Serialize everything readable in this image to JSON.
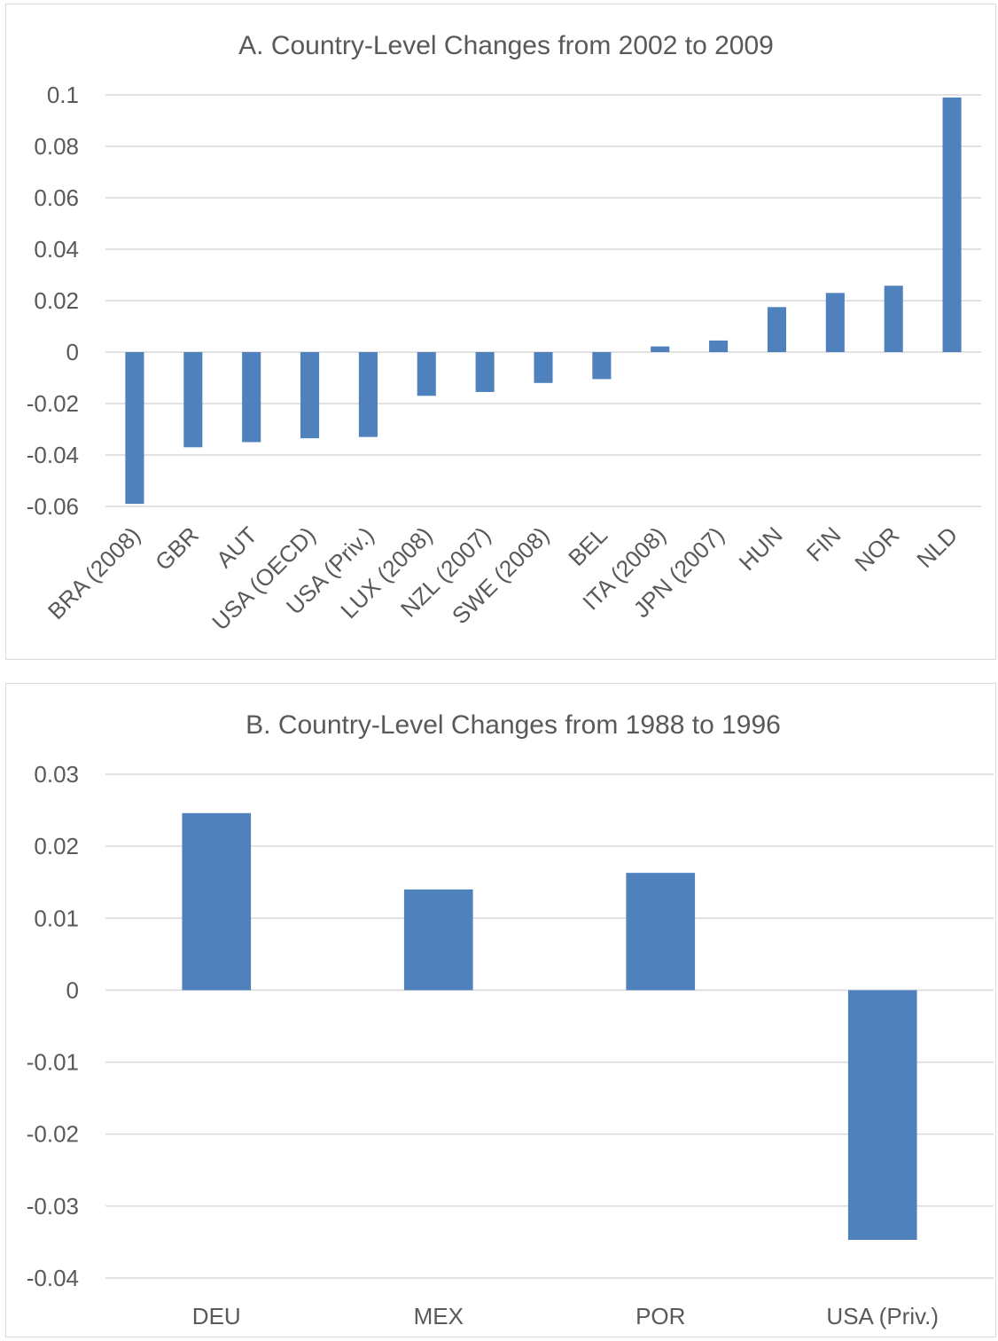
{
  "chart_data": [
    {
      "type": "bar",
      "title": "A. Country-Level Changes from  2002 to 2009",
      "categories": [
        "BRA (2008)",
        "GBR",
        "AUT",
        "USA (OECD)",
        "USA (Priv.)",
        "LUX (2008)",
        "NZL (2007)",
        "SWE (2008)",
        "BEL",
        "ITA (2008)",
        "JPN (2007)",
        "HUN",
        "FIN",
        "NOR",
        "NLD"
      ],
      "values": [
        -0.059,
        -0.037,
        -0.035,
        -0.0335,
        -0.033,
        -0.017,
        -0.0155,
        -0.012,
        -0.0105,
        0.0022,
        0.0045,
        0.0175,
        0.023,
        0.0258,
        0.099
      ],
      "ylim": [
        -0.06,
        0.1
      ],
      "yticks": [
        "0.1",
        "0.08",
        "0.06",
        "0.04",
        "0.02",
        "0",
        "-0.02",
        "-0.04",
        "-0.06"
      ],
      "grid": true,
      "bar_color": "#4f81bd",
      "xlabel": "",
      "ylabel": ""
    },
    {
      "type": "bar",
      "title": "B. Country-Level Changes from 1988 to 1996",
      "categories": [
        "DEU",
        "MEX",
        "POR",
        "USA (Priv.)"
      ],
      "values": [
        0.0246,
        0.014,
        0.0163,
        -0.0347
      ],
      "ylim": [
        -0.04,
        0.03
      ],
      "yticks": [
        "0.03",
        "0.02",
        "0.01",
        "0",
        "-0.01",
        "-0.02",
        "-0.03",
        "-0.04"
      ],
      "grid": true,
      "bar_color": "#4f81bd",
      "xlabel": "",
      "ylabel": ""
    }
  ]
}
